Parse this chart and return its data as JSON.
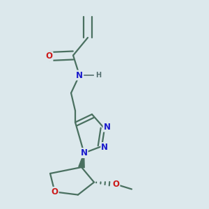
{
  "background_color": "#dce8ec",
  "bond_color": "#4a7060",
  "bond_width": 1.6,
  "atom_colors": {
    "N": "#1a1acc",
    "O": "#cc1a1a",
    "H": "#557070",
    "C": "#4a7060"
  },
  "font_size_atoms": 8.5,
  "font_size_H": 7.0,
  "font_size_OMe": 8.5,
  "figsize": [
    3.0,
    3.0
  ],
  "dpi": 100,
  "xlim": [
    0,
    1
  ],
  "ylim": [
    0,
    1
  ]
}
